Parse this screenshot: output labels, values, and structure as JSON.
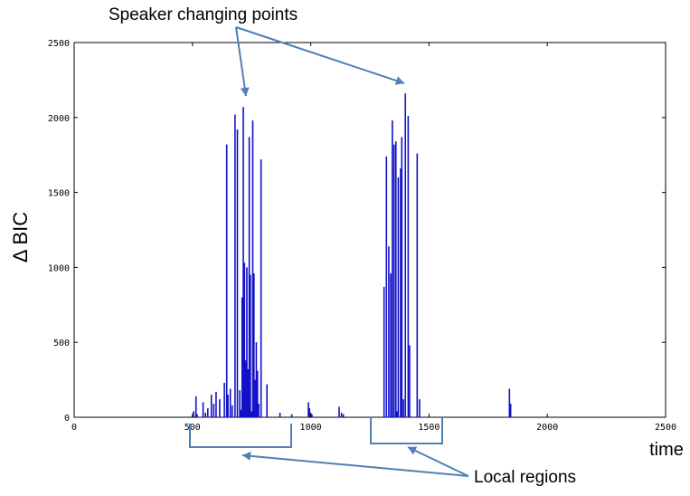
{
  "colors": {
    "bars": "#1010c8",
    "callout": "#4f7fb4",
    "axis": "#000000"
  },
  "annotations": {
    "top": "Speaker changing points",
    "bottom": "Local regions"
  },
  "chart_data": {
    "type": "bar",
    "title": "",
    "xlabel": "time",
    "ylabel": "Δ BIC",
    "xlim": [
      0,
      2500
    ],
    "ylim": [
      0,
      2500
    ],
    "grid": false,
    "xticks": [
      0,
      500,
      1000,
      1500,
      2000,
      2500
    ],
    "yticks": [
      0,
      500,
      1000,
      1500,
      2000,
      2500
    ],
    "series": [
      {
        "x": [
          505,
          515,
          520,
          545,
          555,
          565,
          580,
          590,
          600,
          615,
          635,
          645,
          650,
          660,
          668,
          680,
          690,
          700,
          705,
          710,
          715,
          720,
          725,
          730,
          735,
          740,
          745,
          750,
          755,
          760,
          765,
          770,
          775,
          780,
          790,
          815,
          870,
          920,
          990,
          995,
          1000,
          1005,
          1120,
          1130,
          1138,
          1310,
          1320,
          1330,
          1338,
          1345,
          1352,
          1360,
          1365,
          1370,
          1380,
          1385,
          1392,
          1400,
          1412,
          1418,
          1450,
          1460,
          1840,
          1845
        ],
        "values": [
          40,
          140,
          20,
          100,
          30,
          60,
          150,
          90,
          170,
          120,
          230,
          1820,
          150,
          190,
          80,
          2020,
          1920,
          180,
          50,
          800,
          2070,
          1030,
          380,
          1000,
          320,
          1870,
          950,
          40,
          1980,
          960,
          250,
          500,
          310,
          90,
          1720,
          220,
          30,
          20,
          100,
          60,
          30,
          20,
          70,
          30,
          20,
          870,
          1740,
          1140,
          960,
          1980,
          1820,
          1840,
          40,
          1600,
          1660,
          1870,
          120,
          2160,
          2010,
          480,
          1760,
          120,
          190,
          90
        ]
      }
    ]
  }
}
